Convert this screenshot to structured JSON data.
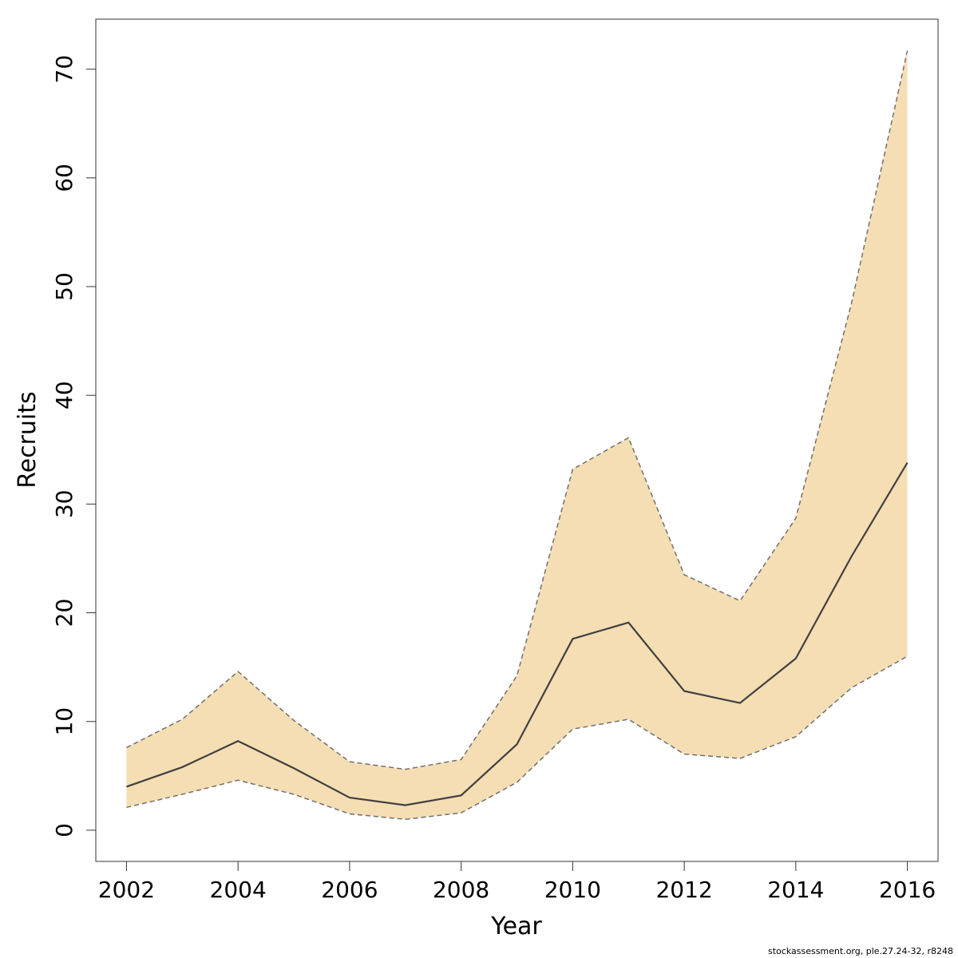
{
  "chart_data": {
    "type": "area",
    "xlabel": "Year",
    "ylabel": "Recruits",
    "x": [
      2002,
      2003,
      2004,
      2005,
      2006,
      2007,
      2008,
      2009,
      2010,
      2011,
      2012,
      2013,
      2014,
      2015,
      2016
    ],
    "series": [
      {
        "role": "estimate",
        "values": [
          4.0,
          5.8,
          8.2,
          5.7,
          3.0,
          2.3,
          3.2,
          7.9,
          17.6,
          19.1,
          12.8,
          11.7,
          15.8,
          25.2,
          33.8
        ]
      },
      {
        "role": "upper",
        "values": [
          7.6,
          10.2,
          14.6,
          10.1,
          6.3,
          5.6,
          6.5,
          14.2,
          33.2,
          36.1,
          23.5,
          21.1,
          28.7,
          48.5,
          71.7
        ]
      },
      {
        "role": "lower",
        "values": [
          2.1,
          3.3,
          4.6,
          3.3,
          1.5,
          1.0,
          1.6,
          4.4,
          9.3,
          10.2,
          7.0,
          6.6,
          8.6,
          13.1,
          16.0
        ]
      }
    ],
    "xlim": [
      2001.45,
      2016.55
    ],
    "ylim": [
      -2.87,
      74.6
    ],
    "xticks": [
      "2002",
      "2004",
      "2006",
      "2008",
      "2010",
      "2012",
      "2014",
      "2016"
    ],
    "yticks": [
      "0",
      "10",
      "20",
      "30",
      "40",
      "50",
      "60",
      "70"
    ],
    "grid": false,
    "colors": {
      "band": "#F5DEB3",
      "line": "#404040",
      "bounds": "#707070"
    }
  },
  "footer": {
    "source": "stockassessment.org, ple.27.24-32, r8248"
  }
}
